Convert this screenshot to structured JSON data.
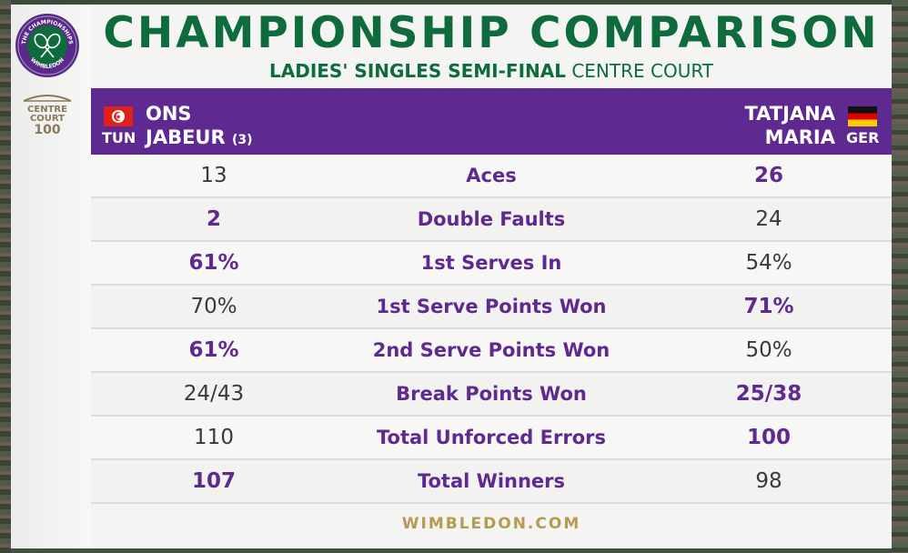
{
  "logo": {
    "ring_text_top": "THE CHAMPIONSHIPS",
    "ring_text_bottom": "WIMBLEDON",
    "centre_court_line1": "CENTRE",
    "centre_court_line2": "COURT",
    "centre_court_year": "100"
  },
  "header": {
    "title": "CHAMPIONSHIP COMPARISON",
    "subtitle_bold": "LADIES' SINGLES SEMI-FINAL",
    "subtitle_rest": " CENTRE COURT"
  },
  "players": {
    "left": {
      "first": "ONS",
      "last": "JABEUR",
      "seed": "(3)",
      "code": "TUN",
      "flag": "tunisia-flag-icon"
    },
    "right": {
      "first": "TATJANA",
      "last": "MARIA",
      "code": "GER",
      "flag": "germany-flag-icon"
    }
  },
  "stats": [
    {
      "label": "Aces",
      "left": "13",
      "right": "26",
      "winner": "right"
    },
    {
      "label": "Double Faults",
      "left": "2",
      "right": "24",
      "winner": "left"
    },
    {
      "label": "1st Serves In",
      "left": "61%",
      "right": "54%",
      "winner": "left"
    },
    {
      "label": "1st Serve Points Won",
      "left": "70%",
      "right": "71%",
      "winner": "right"
    },
    {
      "label": "2nd Serve Points Won",
      "left": "61%",
      "right": "50%",
      "winner": "left"
    },
    {
      "label": "Break Points Won",
      "left": "24/43",
      "right": "25/38",
      "winner": "right"
    },
    {
      "label": "Total Unforced Errors",
      "left": "110",
      "right": "100",
      "winner": "right"
    },
    {
      "label": "Total Winners",
      "left": "107",
      "right": "98",
      "winner": "left"
    }
  ],
  "footer": {
    "url": "WIMBLEDON.COM"
  },
  "colors": {
    "green": "#0d6b3c",
    "purple": "#5e2a91",
    "gold": "#b59a52"
  }
}
